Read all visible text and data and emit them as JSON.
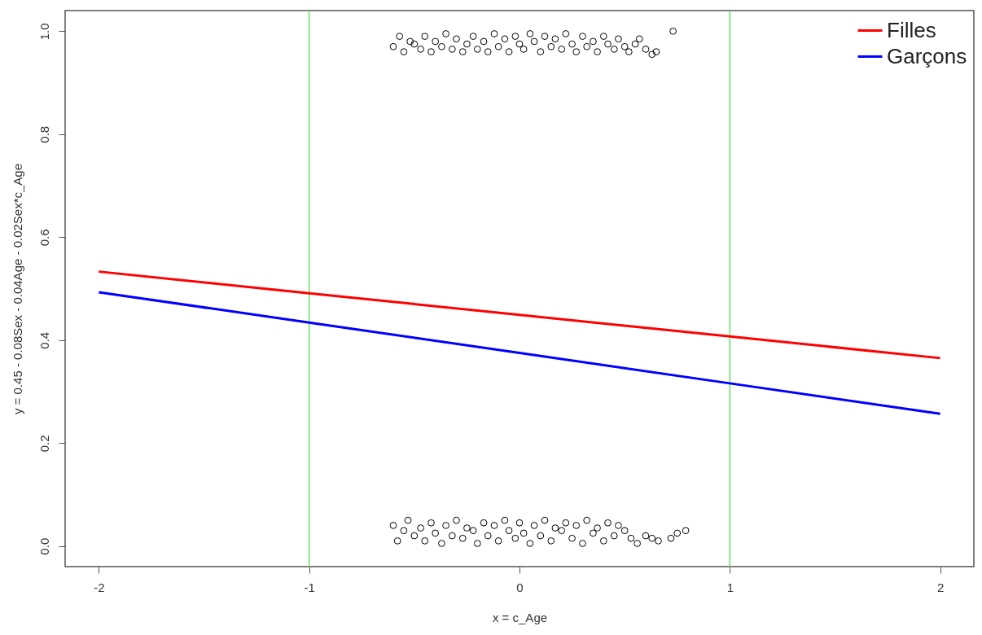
{
  "chart_data": {
    "type": "scatter",
    "xlabel": "x = c_Age",
    "ylabel": "y = 0.45 - 0.08Sex - 0.04Age - 0.02Sex*c_Age",
    "xlim": [
      -2.16,
      2.16
    ],
    "ylim": [
      -0.04,
      1.04
    ],
    "xticks": [
      -2,
      -1,
      0,
      1,
      2
    ],
    "yticks": [
      {
        "value": 0,
        "label": "0.0"
      },
      {
        "value": 0.2,
        "label": "0.2"
      },
      {
        "value": 0.4,
        "label": "0.4"
      },
      {
        "value": 0.6,
        "label": "0.6"
      },
      {
        "value": 0.8,
        "label": "0.8"
      },
      {
        "value": 1,
        "label": "1.0"
      }
    ],
    "grid": false,
    "legend": "top right",
    "ref_lines": [
      {
        "axis": "x",
        "value": -1,
        "color": "#66e066"
      },
      {
        "axis": "x",
        "value": 1,
        "color": "#66e066"
      }
    ],
    "series": [
      {
        "name": "Filles",
        "type": "line",
        "color": "#ff0000",
        "marker": "none",
        "line_style": "solid",
        "x": [
          -2,
          -1,
          0,
          1,
          2
        ],
        "values": [
          0.533,
          0.491,
          0.449,
          0.407,
          0.365
        ]
      },
      {
        "name": "Garçons",
        "type": "line",
        "color": "#0000ff",
        "marker": "none",
        "line_style": "solid",
        "x": [
          -2,
          -1,
          0,
          1,
          2
        ],
        "values": [
          0.493,
          0.434,
          0.375,
          0.316,
          0.257
        ]
      },
      {
        "color": "#000000",
        "marker": "circle",
        "x": [
          -0.6,
          -0.57,
          -0.55,
          -0.52,
          -0.5,
          -0.47,
          -0.45,
          -0.42,
          -0.4,
          -0.37,
          -0.35,
          -0.32,
          -0.3,
          -0.27,
          -0.25,
          -0.22,
          -0.2,
          -0.17,
          -0.15,
          -0.12,
          -0.1,
          -0.07,
          -0.05,
          -0.02,
          0,
          0.02,
          0.05,
          0.07,
          0.1,
          0.12,
          0.15,
          0.17,
          0.2,
          0.22,
          0.25,
          0.27,
          0.3,
          0.32,
          0.35,
          0.37,
          0.4,
          0.42,
          0.45,
          0.47,
          0.5,
          0.52,
          0.55,
          0.57,
          0.6,
          0.63,
          0.65,
          0.73
        ],
        "values": [
          0.97,
          0.99,
          0.96,
          0.98,
          0.975,
          0.965,
          0.99,
          0.96,
          0.98,
          0.97,
          0.995,
          0.965,
          0.985,
          0.96,
          0.975,
          0.99,
          0.965,
          0.98,
          0.96,
          0.995,
          0.97,
          0.985,
          0.96,
          0.99,
          0.975,
          0.965,
          0.995,
          0.98,
          0.96,
          0.99,
          0.97,
          0.985,
          0.965,
          0.995,
          0.975,
          0.96,
          0.99,
          0.97,
          0.98,
          0.96,
          0.99,
          0.975,
          0.965,
          0.985,
          0.97,
          0.96,
          0.975,
          0.985,
          0.965,
          0.955,
          0.96,
          1.0
        ]
      },
      {
        "color": "#000000",
        "marker": "circle",
        "x": [
          -0.6,
          -0.58,
          -0.55,
          -0.53,
          -0.5,
          -0.47,
          -0.45,
          -0.42,
          -0.4,
          -0.37,
          -0.35,
          -0.32,
          -0.3,
          -0.27,
          -0.25,
          -0.22,
          -0.2,
          -0.17,
          -0.15,
          -0.12,
          -0.1,
          -0.07,
          -0.05,
          -0.02,
          0,
          0.02,
          0.05,
          0.07,
          0.1,
          0.12,
          0.15,
          0.17,
          0.2,
          0.22,
          0.25,
          0.27,
          0.3,
          0.32,
          0.35,
          0.37,
          0.4,
          0.42,
          0.45,
          0.47,
          0.5,
          0.53,
          0.56,
          0.6,
          0.63,
          0.66,
          0.72,
          0.75,
          0.79
        ],
        "values": [
          0.04,
          0.01,
          0.03,
          0.05,
          0.02,
          0.035,
          0.01,
          0.045,
          0.025,
          0.005,
          0.04,
          0.02,
          0.05,
          0.015,
          0.035,
          0.03,
          0.005,
          0.045,
          0.02,
          0.04,
          0.01,
          0.05,
          0.03,
          0.015,
          0.045,
          0.025,
          0.005,
          0.04,
          0.02,
          0.05,
          0.01,
          0.035,
          0.03,
          0.045,
          0.015,
          0.04,
          0.005,
          0.05,
          0.025,
          0.035,
          0.01,
          0.045,
          0.02,
          0.04,
          0.03,
          0.015,
          0.005,
          0.02,
          0.015,
          0.01,
          0.015,
          0.025,
          0.03
        ]
      }
    ]
  }
}
